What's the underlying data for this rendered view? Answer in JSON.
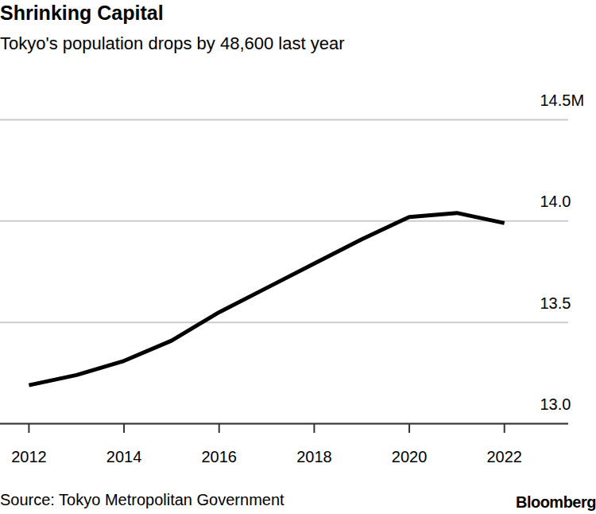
{
  "chart_data": {
    "type": "line",
    "title": "Shrinking Capital",
    "subtitle": "Tokyo's population drops by 48,600 last year",
    "source": "Source: Tokyo Metropolitan Government",
    "credit": "Bloomberg",
    "x": [
      2012,
      2013,
      2014,
      2015,
      2016,
      2017,
      2018,
      2019,
      2020,
      2021,
      2022
    ],
    "values": [
      13.19,
      13.24,
      13.31,
      13.41,
      13.55,
      13.67,
      13.79,
      13.91,
      14.02,
      14.04,
      13.99
    ],
    "color": "#000000",
    "xlim": [
      2011.4,
      2023.35
    ],
    "xticks": [
      2012,
      2014,
      2016,
      2018,
      2020,
      2022
    ],
    "ylim": [
      13.0,
      14.5
    ],
    "yticks": [
      {
        "value": 13.0,
        "label": "13.0"
      },
      13.5,
      {
        "value": 14.0,
        "label": "14.0"
      },
      {
        "value": 14.5,
        "label": "14.5M"
      }
    ],
    "grid": true
  }
}
